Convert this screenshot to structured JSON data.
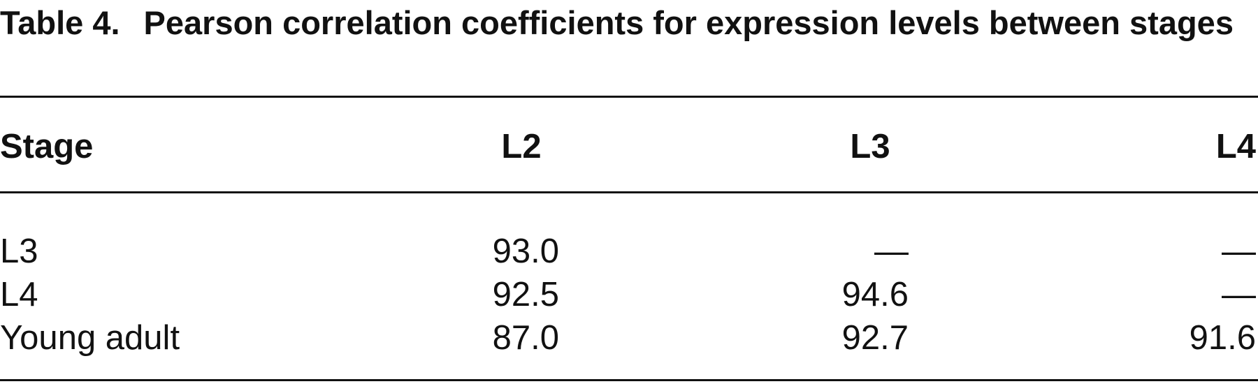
{
  "title": {
    "label": "Table 4.",
    "text": "Pearson correlation coefficients for expression levels between stages"
  },
  "table": {
    "header": [
      "Stage",
      "L2",
      "L3",
      "L4"
    ],
    "rows": [
      [
        "L3",
        "93.0",
        "—",
        "—"
      ],
      [
        "L4",
        "92.5",
        "94.6",
        "—"
      ],
      [
        "Young adult",
        "87.0",
        "92.7",
        "91.6"
      ]
    ]
  }
}
